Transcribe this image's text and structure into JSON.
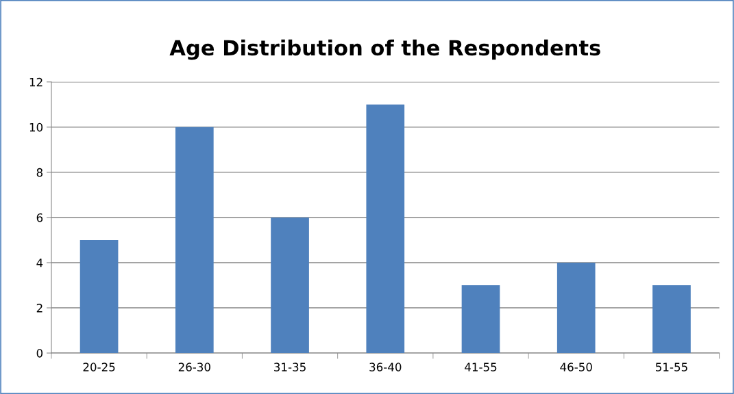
{
  "chart_data": {
    "type": "bar",
    "title": "Age Distribution of the Respondents",
    "categories": [
      "20-25",
      "26-30",
      "31-35",
      "36-40",
      "41-55",
      "46-50",
      "51-55"
    ],
    "values": [
      5,
      10,
      6,
      11,
      3,
      4,
      3
    ],
    "color": "#4f81bd",
    "ylim": [
      0,
      12
    ],
    "yticks": [
      0,
      2,
      4,
      6,
      8,
      10,
      12
    ],
    "grid": "y",
    "legend": false
  }
}
